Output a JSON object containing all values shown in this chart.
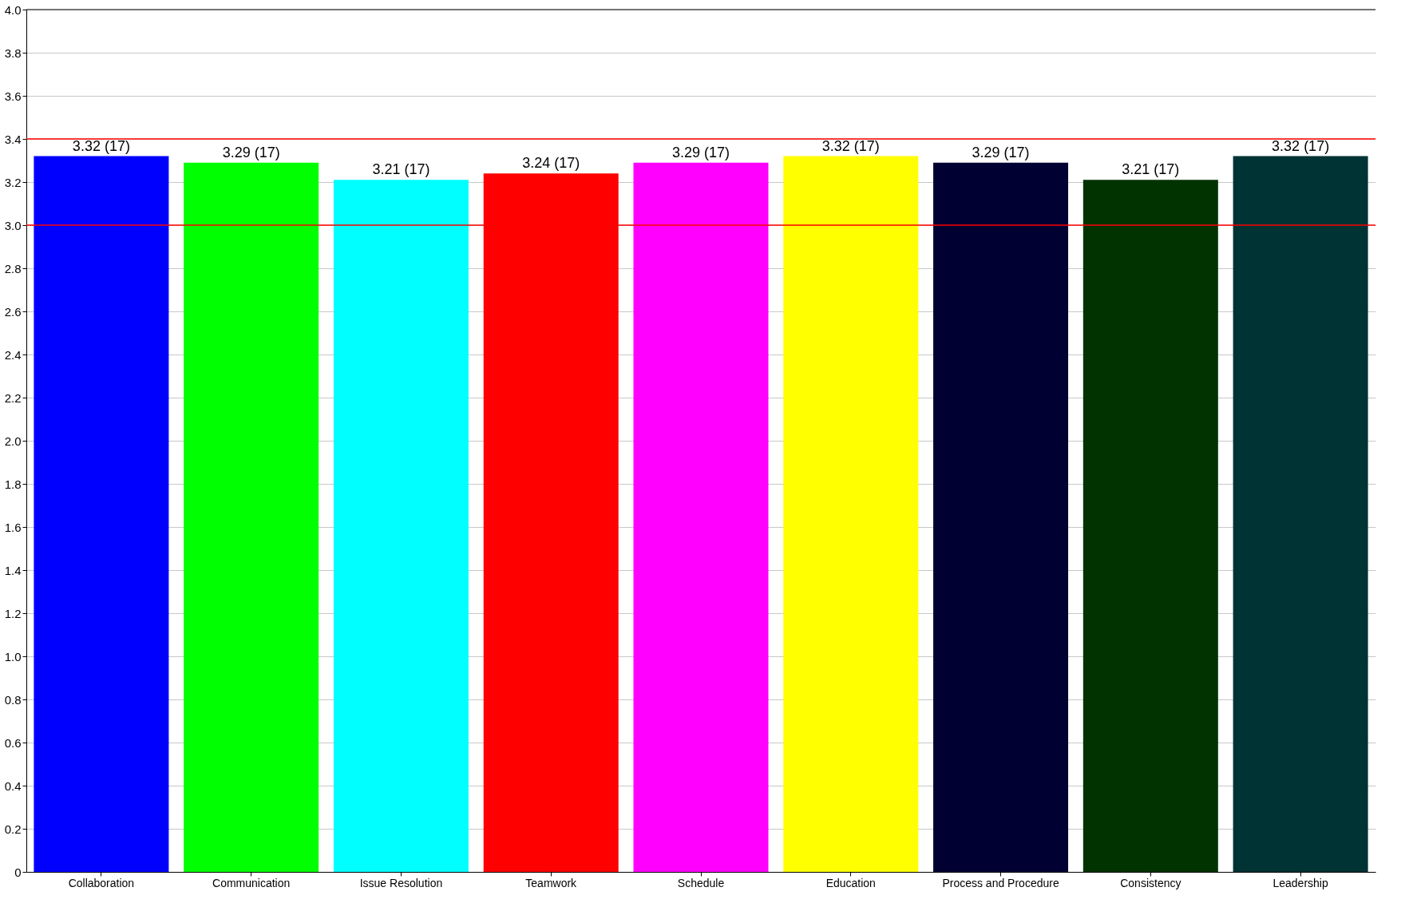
{
  "chart_data": {
    "type": "bar",
    "categories": [
      "Collaboration",
      "Communication",
      "Issue Resolution",
      "Teamwork",
      "Schedule",
      "Education",
      "Process and Procedure",
      "Consistency",
      "Leadership"
    ],
    "values": [
      3.32,
      3.29,
      3.21,
      3.24,
      3.29,
      3.32,
      3.29,
      3.21,
      3.32
    ],
    "value_labels": [
      "3.32 (17)",
      "3.29 (17)",
      "3.21 (17)",
      "3.24 (17)",
      "3.29 (17)",
      "3.32 (17)",
      "3.29 (17)",
      "3.21 (17)",
      "3.32 (17)"
    ],
    "colors": [
      "#0000ff",
      "#00ff00",
      "#00ffff",
      "#ff0000",
      "#ff00ff",
      "#ffff00",
      "#000033",
      "#003300",
      "#003333"
    ],
    "ylim": [
      0,
      4.0
    ],
    "yticks": [
      0,
      0.2,
      0.4,
      0.6,
      0.8,
      {
        "value": 1,
        "label": "1.0"
      },
      1.2,
      1.4,
      1.6,
      1.8,
      {
        "value": 2,
        "label": "2.0"
      },
      2.2,
      2.4,
      2.6,
      2.8,
      {
        "value": 3,
        "label": "3.0"
      },
      3.2,
      3.4,
      3.6,
      3.8,
      {
        "value": 4,
        "label": "4.0"
      }
    ],
    "grid": "y",
    "legend": false,
    "ref_lines": [
      {
        "axis": "y",
        "value": 3.4,
        "color": "#ff0000"
      },
      {
        "axis": "y",
        "value": 3.0,
        "color": "#ff0000"
      }
    ]
  }
}
